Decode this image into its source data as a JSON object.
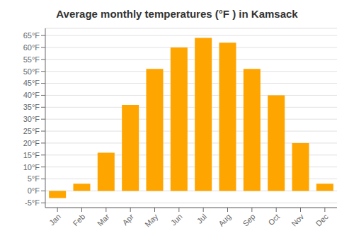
{
  "chart_data": {
    "type": "bar",
    "title": "Average monthly temperatures (°F ) in Kamsack",
    "categories": [
      "Jan",
      "Feb",
      "Mar",
      "Apr",
      "May",
      "Jun",
      "Jul",
      "Aug",
      "Sep",
      "Oct",
      "Nov",
      "Dec"
    ],
    "values": [
      -3,
      3,
      16,
      36,
      51,
      60,
      64,
      62,
      51,
      40,
      20,
      3
    ],
    "color": "#FFA500",
    "ylim": [
      -7,
      68
    ],
    "yticks": [
      {
        "value": -5,
        "label": "-5°F"
      },
      {
        "value": 0,
        "label": "0°F"
      },
      {
        "value": 5,
        "label": "5°F"
      },
      {
        "value": 10,
        "label": "10°F"
      },
      {
        "value": 15,
        "label": "15°F"
      },
      {
        "value": 20,
        "label": "20°F"
      },
      {
        "value": 25,
        "label": "25°F"
      },
      {
        "value": 30,
        "label": "30°F"
      },
      {
        "value": 35,
        "label": "35°F"
      },
      {
        "value": 40,
        "label": "40°F"
      },
      {
        "value": 45,
        "label": "45°F"
      },
      {
        "value": 50,
        "label": "50°F"
      },
      {
        "value": 55,
        "label": "55°F"
      },
      {
        "value": 60,
        "label": "60°F"
      },
      {
        "value": 65,
        "label": "65°F"
      }
    ],
    "grid": true
  }
}
